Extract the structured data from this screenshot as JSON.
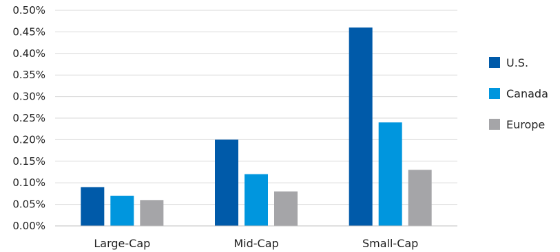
{
  "chart_data": {
    "type": "bar",
    "title": "",
    "xlabel": "",
    "ylabel": "",
    "categories": [
      "Large-Cap",
      "Mid-Cap",
      "Small-Cap"
    ],
    "series": [
      {
        "name": "U.S.",
        "color": "#005aa9",
        "values": [
          0.09,
          0.2,
          0.46
        ]
      },
      {
        "name": "Canada",
        "color": "#0096de",
        "values": [
          0.07,
          0.12,
          0.24
        ]
      },
      {
        "name": "Europe",
        "color": "#a5a5a8",
        "values": [
          0.06,
          0.08,
          0.13
        ]
      }
    ],
    "ylim": [
      0,
      0.5
    ],
    "y_ticks": [
      "0.00%",
      "0.05%",
      "0.10%",
      "0.15%",
      "0.20%",
      "0.25%",
      "0.30%",
      "0.35%",
      "0.40%",
      "0.45%",
      "0.50%"
    ],
    "grid": true,
    "legend_position": "right"
  }
}
